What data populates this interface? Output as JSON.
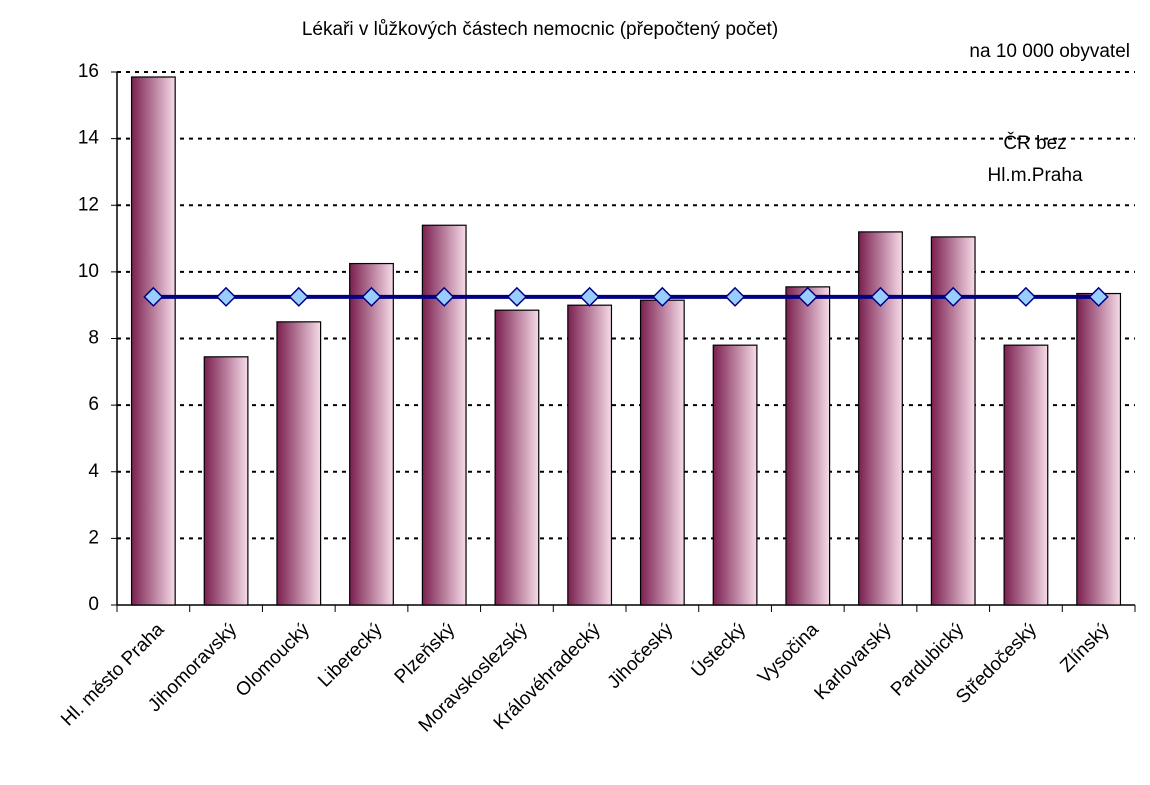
{
  "chart_data": {
    "type": "bar",
    "title": "Lékaři v lůžkových částech nemocnic (přepočtený počet)",
    "subtitle": "na 10 000 obyvatel",
    "categories": [
      "Hl. město Praha",
      "Jihomoravský",
      "Olomoucký",
      "Liberecký",
      "Plzeňský",
      "Moravskoslezský",
      "Královéhradecký",
      "Jihočeský",
      "Ústecký",
      "Vysočina",
      "Karlovarský",
      "Pardubický",
      "Středočeský",
      "Zlínský"
    ],
    "series": [
      {
        "type": "bar",
        "color": "#7a1f4f",
        "values": [
          15.85,
          7.45,
          8.5,
          10.25,
          11.4,
          8.85,
          9.0,
          9.15,
          7.8,
          9.55,
          11.2,
          11.05,
          7.8,
          9.35
        ]
      },
      {
        "type": "line",
        "name": "ČR bez Hl.m.Praha",
        "color": "#000080",
        "marker_color": "#99ccff",
        "values": [
          9.25,
          9.25,
          9.25,
          9.25,
          9.25,
          9.25,
          9.25,
          9.25,
          9.25,
          9.25,
          9.25,
          9.25,
          9.25,
          9.25
        ]
      }
    ],
    "ylim": [
      0,
      16
    ],
    "yticks": [
      0,
      2,
      4,
      6,
      8,
      10,
      12,
      14,
      16
    ],
    "grid": true
  }
}
